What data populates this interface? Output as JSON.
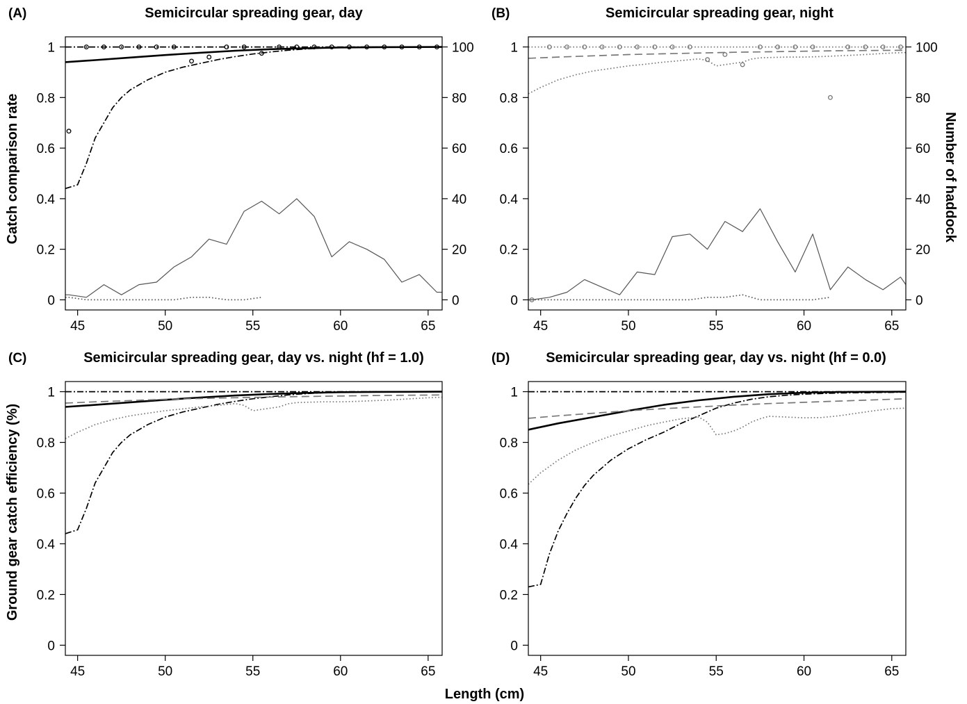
{
  "figure": {
    "xlabel": "Length (cm)",
    "ylabel_top": "Catch comparison rate",
    "ylabel_top_right": "Number of haddock",
    "ylabel_bottom": "Ground gear catch efficiency (%)"
  },
  "chart_data": [
    {
      "panel": "(A)",
      "type": "line",
      "title": "Semicircular spreading gear, day",
      "xlim": [
        44.3,
        65.8
      ],
      "ylim": [
        -0.04,
        1.04
      ],
      "y2lim": [
        -4,
        104
      ],
      "xticks": [
        45,
        50,
        55,
        60,
        65
      ],
      "yticks": [
        0.0,
        0.2,
        0.4,
        0.6,
        0.8,
        1.0
      ],
      "y2ticks": [
        0,
        20,
        40,
        60,
        80,
        100
      ],
      "series": [
        {
          "style": "solid-thick",
          "color": "#000000",
          "axis": "left",
          "x": [
            44.3,
            46,
            48,
            50,
            52,
            54,
            56,
            58,
            60,
            62,
            65.8
          ],
          "y": [
            0.94,
            0.948,
            0.958,
            0.968,
            0.977,
            0.985,
            0.991,
            0.995,
            0.998,
            0.999,
            1.0
          ]
        },
        {
          "style": "dashdot",
          "color": "#000000",
          "axis": "left",
          "x": [
            44.3,
            45,
            45.5,
            46,
            46.5,
            47,
            47.5,
            48,
            49,
            50,
            51,
            52,
            53,
            54,
            55,
            56,
            57,
            58,
            59,
            60,
            62,
            65.8
          ],
          "y": [
            0.44,
            0.455,
            0.54,
            0.64,
            0.7,
            0.76,
            0.8,
            0.83,
            0.87,
            0.9,
            0.92,
            0.935,
            0.95,
            0.962,
            0.972,
            0.98,
            0.987,
            0.992,
            0.996,
            0.998,
            1.0,
            1.0
          ]
        },
        {
          "style": "dashdot",
          "color": "#000000",
          "axis": "left",
          "x": [
            44.3,
            65.8
          ],
          "y": [
            1.0,
            1.0
          ]
        },
        {
          "style": "points",
          "color": "#000000",
          "axis": "left",
          "x": [
            44.5,
            45.5,
            46.5,
            47.5,
            48.5,
            49.5,
            50.5,
            51.5,
            52.5,
            53.5,
            54.5,
            55.5,
            56.5,
            57.5,
            58.5,
            59.5,
            60.5,
            61.5,
            62.5,
            63.5,
            64.5,
            65.5
          ],
          "y": [
            0.667,
            1.0,
            1.0,
            1.0,
            1.0,
            1.0,
            1.0,
            0.944,
            0.96,
            1.0,
            1.0,
            0.975,
            1.0,
            1.0,
            1.0,
            1.0,
            1.0,
            1.0,
            1.0,
            1.0,
            1.0,
            1.0
          ]
        },
        {
          "style": "solid-thin",
          "color": "#555555",
          "axis": "right",
          "x": [
            44.3,
            44.5,
            45.5,
            46.5,
            47.5,
            48.5,
            49.5,
            50.5,
            51.5,
            52.5,
            53.5,
            54.5,
            55.5,
            56.5,
            57.5,
            58.5,
            59.5,
            60.5,
            61.5,
            62.5,
            63.5,
            64.5,
            65.5,
            65.8
          ],
          "y": [
            2,
            2,
            1,
            6,
            2,
            6,
            7,
            13,
            17,
            24,
            22,
            35,
            39,
            34,
            40,
            33,
            17,
            23,
            20,
            16,
            7,
            10,
            3,
            3
          ]
        },
        {
          "style": "dotted",
          "color": "#555555",
          "axis": "right",
          "x": [
            44.3,
            44.5,
            45.5,
            46.5,
            47.5,
            48.5,
            49.5,
            50.5,
            51.5,
            52.5,
            53.5,
            54.5,
            55.5
          ],
          "y": [
            1,
            1,
            0,
            0,
            0,
            0,
            0,
            0,
            1,
            1,
            0,
            0,
            1
          ]
        }
      ]
    },
    {
      "panel": "(B)",
      "type": "line",
      "title": "Semicircular spreading gear, night",
      "xlim": [
        44.3,
        65.8
      ],
      "ylim": [
        -0.04,
        1.04
      ],
      "y2lim": [
        -4,
        104
      ],
      "xticks": [
        45,
        50,
        55,
        60,
        65
      ],
      "yticks": [
        0.0,
        0.2,
        0.4,
        0.6,
        0.8,
        1.0
      ],
      "y2ticks": [
        0,
        20,
        40,
        60,
        80,
        100
      ],
      "series": [
        {
          "style": "dashed",
          "color": "#777777",
          "axis": "left",
          "x": [
            44.3,
            46,
            48,
            50,
            52,
            54,
            56,
            58,
            60,
            62,
            65.8
          ],
          "y": [
            0.955,
            0.96,
            0.965,
            0.97,
            0.973,
            0.976,
            0.979,
            0.981,
            0.983,
            0.985,
            0.987
          ]
        },
        {
          "style": "dotted",
          "color": "#777777",
          "axis": "left",
          "x": [
            44.3,
            45,
            46,
            47,
            48,
            49,
            50,
            51,
            52,
            53,
            54,
            54.5,
            55,
            55.5,
            56,
            56.5,
            57,
            57.5,
            58,
            59,
            60,
            61,
            62,
            63,
            64,
            65,
            65.8
          ],
          "y": [
            0.815,
            0.84,
            0.87,
            0.89,
            0.905,
            0.915,
            0.925,
            0.932,
            0.94,
            0.946,
            0.953,
            0.946,
            0.925,
            0.93,
            0.935,
            0.94,
            0.952,
            0.957,
            0.958,
            0.96,
            0.96,
            0.962,
            0.965,
            0.968,
            0.972,
            0.976,
            0.978
          ]
        },
        {
          "style": "dotted",
          "color": "#777777",
          "axis": "left",
          "x": [
            44.3,
            65.8
          ],
          "y": [
            1.0,
            1.0
          ]
        },
        {
          "style": "points",
          "color": "#777777",
          "axis": "left",
          "x": [
            44.5,
            45.5,
            46.5,
            47.5,
            48.5,
            49.5,
            50.5,
            51.5,
            52.5,
            53.5,
            54.5,
            55.5,
            56.5,
            57.5,
            58.5,
            59.5,
            60.5,
            61.5,
            62.5,
            63.5,
            64.5,
            65.5
          ],
          "y": [
            0.0,
            1.0,
            1.0,
            1.0,
            1.0,
            1.0,
            1.0,
            1.0,
            1.0,
            1.0,
            0.95,
            0.97,
            0.93,
            1.0,
            1.0,
            1.0,
            1.0,
            0.8,
            1.0,
            1.0,
            1.0,
            1.0
          ]
        },
        {
          "style": "solid-thin",
          "color": "#555555",
          "axis": "right",
          "x": [
            44.3,
            44.5,
            45.5,
            46.5,
            47.5,
            48.5,
            49.5,
            50.5,
            51.5,
            52.5,
            53.5,
            54.5,
            55.5,
            56.5,
            57.5,
            58.5,
            59.5,
            60.5,
            61.5,
            62.5,
            63.5,
            64.5,
            65.5,
            65.8
          ],
          "y": [
            0,
            0,
            1,
            3,
            8,
            5,
            2,
            11,
            10,
            25,
            26,
            20,
            31,
            27,
            36,
            23,
            11,
            26,
            4,
            13,
            8,
            4,
            9,
            6
          ]
        },
        {
          "style": "dotted",
          "color": "#555555",
          "axis": "right",
          "x": [
            44.3,
            45.5,
            46.5,
            47.5,
            48.5,
            49.5,
            50.5,
            51.5,
            52.5,
            53.5,
            54.5,
            55.5,
            56.5,
            57.5,
            58.5,
            59.5,
            60.5,
            61.5
          ],
          "y": [
            0,
            0,
            0,
            0,
            0,
            0,
            0,
            0,
            0,
            0,
            1,
            1,
            2,
            0,
            0,
            0,
            0,
            1
          ]
        }
      ]
    },
    {
      "panel": "(C)",
      "type": "line",
      "title": "Semicircular spreading gear, day vs. night (hf = 1.0)",
      "xlim": [
        44.3,
        65.8
      ],
      "ylim": [
        -0.04,
        1.04
      ],
      "xticks": [
        45,
        50,
        55,
        60,
        65
      ],
      "yticks": [
        0.0,
        0.2,
        0.4,
        0.6,
        0.8,
        1.0
      ],
      "series": [
        {
          "style": "solid-thick",
          "color": "#000000",
          "x": [
            44.3,
            46,
            48,
            50,
            52,
            54,
            56,
            58,
            60,
            62,
            65.8
          ],
          "y": [
            0.94,
            0.948,
            0.958,
            0.968,
            0.977,
            0.985,
            0.991,
            0.995,
            0.998,
            0.999,
            1.0
          ]
        },
        {
          "style": "dashdot",
          "color": "#000000",
          "x": [
            44.3,
            45,
            45.5,
            46,
            46.5,
            47,
            47.5,
            48,
            49,
            50,
            51,
            52,
            53,
            54,
            55,
            56,
            57,
            58,
            59,
            60,
            62,
            65.8
          ],
          "y": [
            0.44,
            0.455,
            0.54,
            0.64,
            0.7,
            0.76,
            0.8,
            0.83,
            0.87,
            0.9,
            0.92,
            0.935,
            0.95,
            0.962,
            0.972,
            0.98,
            0.987,
            0.992,
            0.996,
            0.998,
            1.0,
            1.0
          ]
        },
        {
          "style": "dashdot",
          "color": "#000000",
          "x": [
            44.3,
            65.8
          ],
          "y": [
            1.0,
            1.0
          ]
        },
        {
          "style": "dashed",
          "color": "#777777",
          "x": [
            44.3,
            46,
            48,
            50,
            52,
            54,
            56,
            58,
            60,
            62,
            65.8
          ],
          "y": [
            0.955,
            0.96,
            0.965,
            0.97,
            0.973,
            0.976,
            0.979,
            0.981,
            0.983,
            0.985,
            0.987
          ]
        },
        {
          "style": "dotted",
          "color": "#777777",
          "x": [
            44.3,
            45,
            46,
            47,
            48,
            49,
            50,
            51,
            52,
            53,
            54,
            54.5,
            55,
            55.5,
            56,
            56.5,
            57,
            57.5,
            58,
            59,
            60,
            61,
            62,
            63,
            64,
            65,
            65.8
          ],
          "y": [
            0.815,
            0.84,
            0.87,
            0.89,
            0.905,
            0.915,
            0.925,
            0.932,
            0.94,
            0.946,
            0.953,
            0.946,
            0.925,
            0.93,
            0.935,
            0.94,
            0.952,
            0.957,
            0.958,
            0.96,
            0.96,
            0.962,
            0.965,
            0.968,
            0.972,
            0.976,
            0.978
          ]
        }
      ]
    },
    {
      "panel": "(D)",
      "type": "line",
      "title": "Semicircular spreading gear, day vs. night (hf = 0.0)",
      "xlim": [
        44.3,
        65.8
      ],
      "ylim": [
        -0.04,
        1.04
      ],
      "xticks": [
        45,
        50,
        55,
        60,
        65
      ],
      "yticks": [
        0.0,
        0.2,
        0.4,
        0.6,
        0.8,
        1.0
      ],
      "series": [
        {
          "style": "solid-thick",
          "color": "#000000",
          "x": [
            44.3,
            46,
            48,
            50,
            52,
            54,
            56,
            58,
            60,
            62,
            65.8
          ],
          "y": [
            0.85,
            0.875,
            0.9,
            0.925,
            0.948,
            0.966,
            0.98,
            0.99,
            0.996,
            0.999,
            1.0
          ]
        },
        {
          "style": "dashdot",
          "color": "#000000",
          "x": [
            44.3,
            45,
            45.5,
            46,
            46.5,
            47,
            47.5,
            48,
            49,
            50,
            51,
            52,
            53,
            54,
            55,
            56,
            57,
            58,
            59,
            60,
            62,
            65.8
          ],
          "y": [
            0.23,
            0.24,
            0.36,
            0.45,
            0.52,
            0.58,
            0.63,
            0.67,
            0.73,
            0.775,
            0.81,
            0.84,
            0.875,
            0.905,
            0.935,
            0.955,
            0.97,
            0.98,
            0.986,
            0.99,
            0.995,
            0.998
          ]
        },
        {
          "style": "dashdot",
          "color": "#000000",
          "x": [
            44.3,
            65.8
          ],
          "y": [
            1.0,
            1.0
          ]
        },
        {
          "style": "dashed",
          "color": "#777777",
          "x": [
            44.3,
            46,
            48,
            50,
            52,
            54,
            56,
            58,
            60,
            62,
            65.8
          ],
          "y": [
            0.895,
            0.905,
            0.915,
            0.925,
            0.933,
            0.94,
            0.947,
            0.953,
            0.958,
            0.963,
            0.972
          ]
        },
        {
          "style": "dotted",
          "color": "#777777",
          "x": [
            44.3,
            45,
            46,
            47,
            48,
            49,
            50,
            51,
            52,
            53,
            54,
            54.5,
            55,
            55.5,
            56,
            56.5,
            57,
            57.5,
            58,
            59,
            60,
            61,
            62,
            63,
            64,
            65,
            65.8
          ],
          "y": [
            0.635,
            0.68,
            0.73,
            0.77,
            0.8,
            0.825,
            0.845,
            0.865,
            0.88,
            0.893,
            0.9,
            0.88,
            0.83,
            0.835,
            0.845,
            0.86,
            0.88,
            0.893,
            0.903,
            0.9,
            0.897,
            0.898,
            0.905,
            0.915,
            0.925,
            0.933,
            0.935
          ]
        }
      ]
    }
  ]
}
